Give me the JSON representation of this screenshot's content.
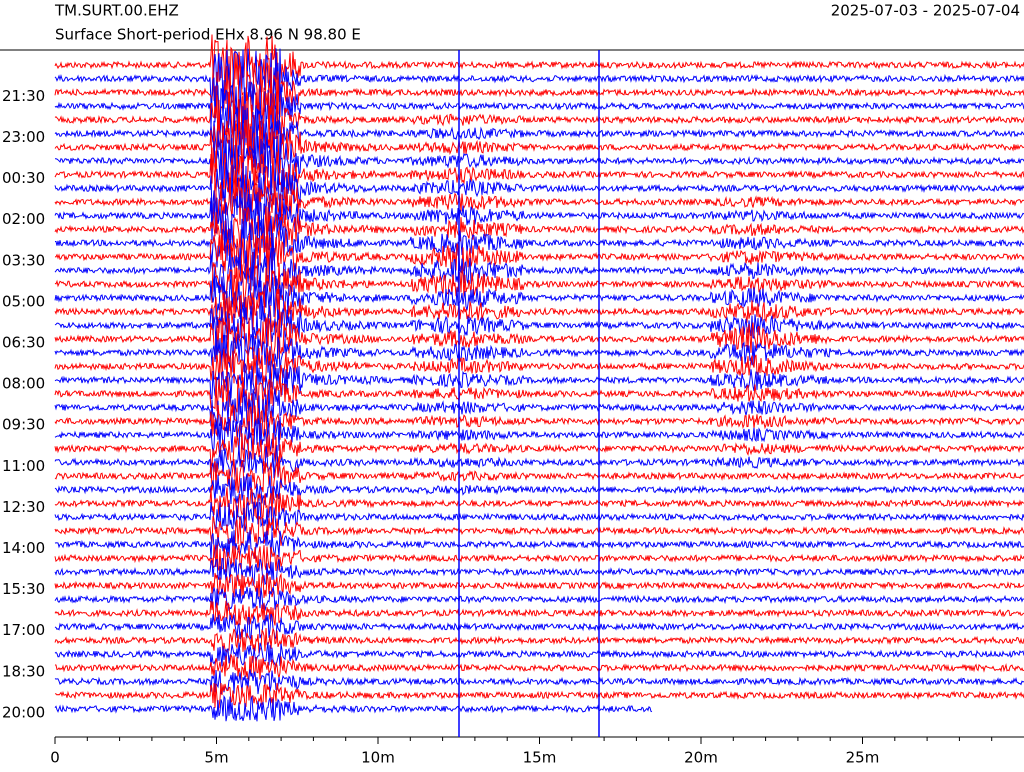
{
  "chart_data": {
    "type": "helicorder",
    "title": "TM.SURT.00.EHZ",
    "subtitle": "Surface Short-period EHx  8.96 N 98.80 E",
    "date_range": "2025-07-03 - 2025-07-04",
    "row_labels": [
      "21:30",
      "23:00",
      "00:30",
      "02:00",
      "03:30",
      "05:00",
      "06:30",
      "08:00",
      "09:30",
      "11:00",
      "12:30",
      "14:00",
      "15:30",
      "17:00",
      "18:30",
      "20:00"
    ],
    "xlim": [
      0,
      30
    ],
    "xticks": [
      0,
      {
        "value": 5,
        "label": "5m"
      },
      {
        "value": 10,
        "label": "10m"
      },
      {
        "value": 15,
        "label": "15m"
      },
      {
        "value": 20,
        "label": "20m"
      },
      {
        "value": 25,
        "label": "25m"
      }
    ],
    "colors": [
      "#ff0000",
      "#0000ff"
    ]
  }
}
